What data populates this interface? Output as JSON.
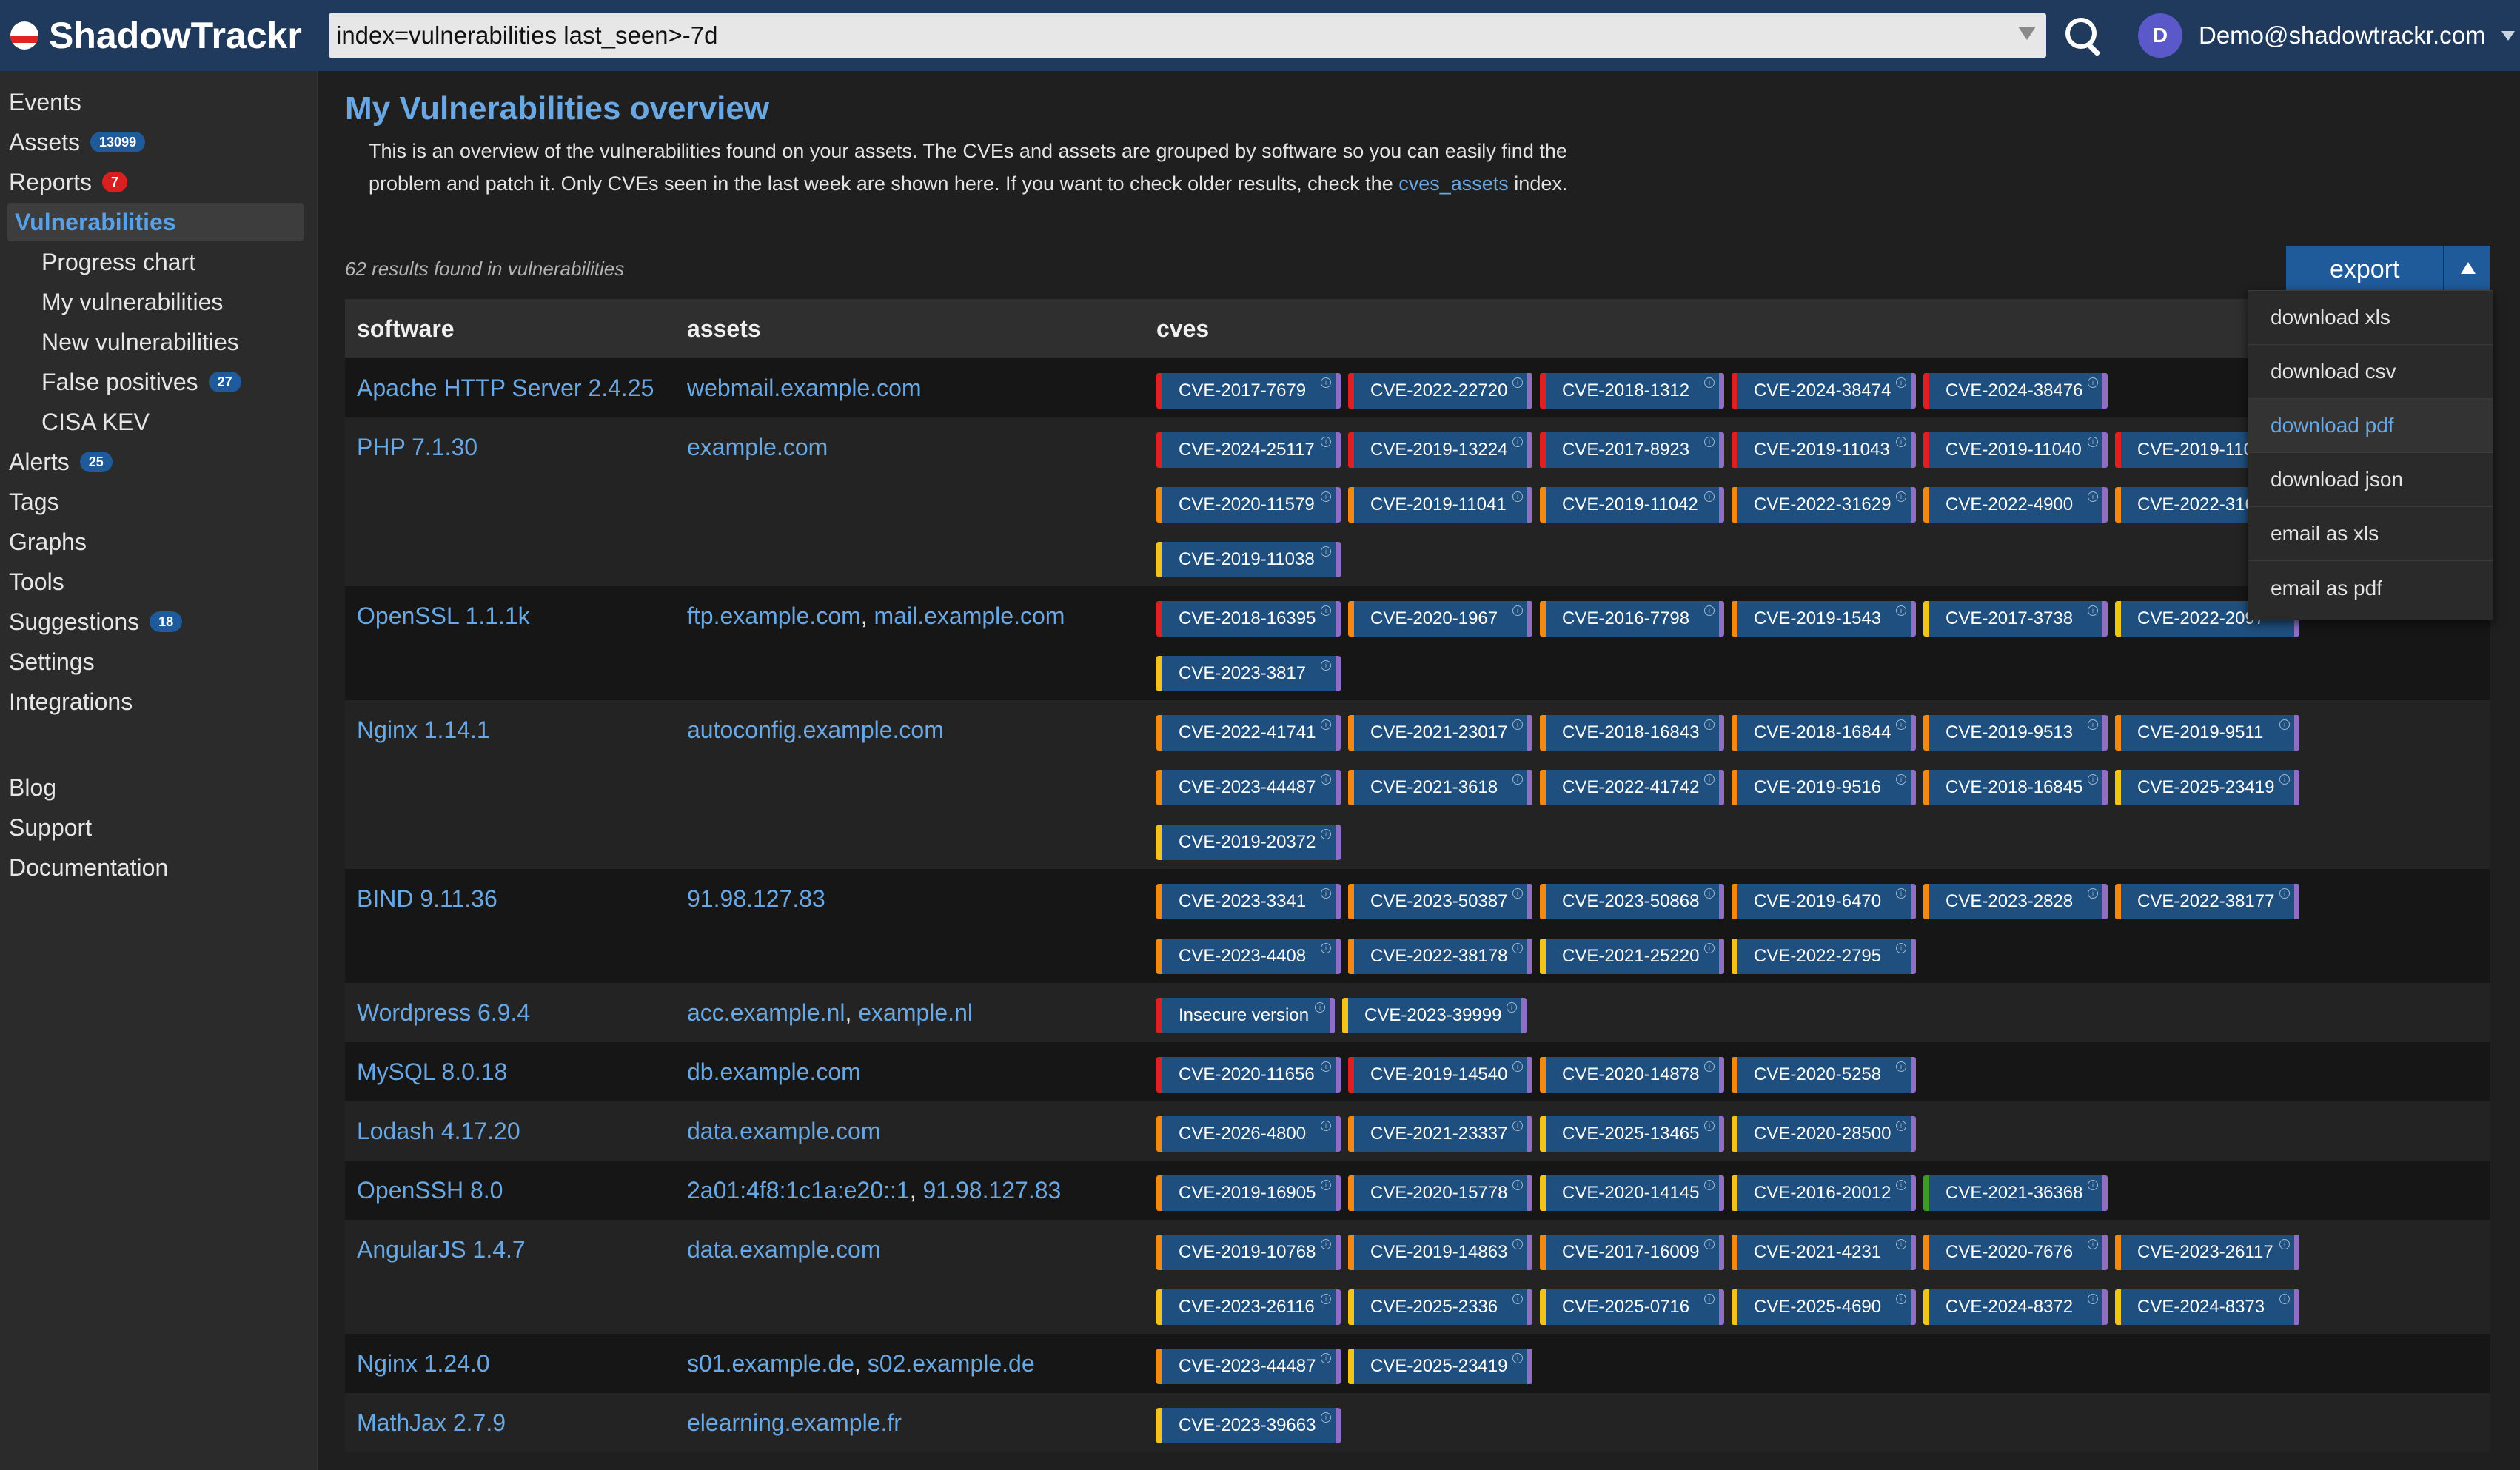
{
  "app": {
    "name": "ShadowTrackr"
  },
  "search": {
    "query": "index=vulnerabilities last_seen>-7d"
  },
  "user": {
    "initial": "D",
    "email": "Demo@shadowtrackr.com"
  },
  "colors": {
    "topbar": "#1f3a5c",
    "link": "#6aa8e4",
    "badge_blue": "#1f5a9a",
    "badge_red": "#d91f1f",
    "critical": "#e02020",
    "high": "#f28a12",
    "medium": "#f2c41a",
    "low": "#3a9b27",
    "cve_bg": "#1f4f7e"
  },
  "sidebar": {
    "items": [
      {
        "label": "Events"
      },
      {
        "label": "Assets",
        "badge": "13099"
      },
      {
        "label": "Reports",
        "badge": "7"
      },
      {
        "label": "Vulnerabilities"
      },
      {
        "label": "Progress chart"
      },
      {
        "label": "My vulnerabilities"
      },
      {
        "label": "New vulnerabilities"
      },
      {
        "label": "False positives",
        "badge": "27"
      },
      {
        "label": "CISA KEV"
      },
      {
        "label": "Alerts",
        "badge": "25"
      },
      {
        "label": "Tags"
      },
      {
        "label": "Graphs"
      },
      {
        "label": "Tools"
      },
      {
        "label": "Suggestions",
        "badge": "18"
      },
      {
        "label": "Settings"
      },
      {
        "label": "Integrations"
      },
      {
        "label": "Blog"
      },
      {
        "label": "Support"
      },
      {
        "label": "Documentation"
      }
    ]
  },
  "main": {
    "title": "My Vulnerabilities overview",
    "description_part1": "This is an overview of the vulnerabilities found on your assets. The CVEs and assets are grouped by software so you can easily find the problem and patch it. Only CVEs seen in the last week are shown here. If you want to check older results, check the ",
    "description_link": "cves_assets",
    "description_part2": " index.",
    "results": "62 results found in vulnerabilities"
  },
  "export": {
    "label": "export",
    "menu": [
      "download xls",
      "download csv",
      "download pdf",
      "download json",
      "email as xls",
      "email as pdf"
    ]
  },
  "table": {
    "headers": [
      "software",
      "assets",
      "cves"
    ],
    "rows": [
      {
        "software": "Apache HTTP Server 2.4.25",
        "assets": [
          "webmail.example.com"
        ],
        "cves": [
          {
            "id": "CVE-2017-7679",
            "sev": "red"
          },
          {
            "id": "CVE-2022-22720",
            "sev": "red"
          },
          {
            "id": "CVE-2018-1312",
            "sev": "red"
          },
          {
            "id": "CVE-2024-38474",
            "sev": "red"
          },
          {
            "id": "CVE-2024-38476",
            "sev": "red"
          }
        ]
      },
      {
        "software": "PHP 7.1.30",
        "assets": [
          "example.com"
        ],
        "cves": [
          {
            "id": "CVE-2024-25117",
            "sev": "red"
          },
          {
            "id": "CVE-2019-13224",
            "sev": "red"
          },
          {
            "id": "CVE-2017-8923",
            "sev": "red"
          },
          {
            "id": "CVE-2019-11043",
            "sev": "red"
          },
          {
            "id": "CVE-2019-11040",
            "sev": "red"
          },
          {
            "id": "CVE-2019-11039",
            "sev": "red"
          },
          {
            "id": "CVE-2020-11579",
            "sev": "orange"
          },
          {
            "id": "CVE-2019-11041",
            "sev": "orange"
          },
          {
            "id": "CVE-2019-11042",
            "sev": "orange"
          },
          {
            "id": "CVE-2022-31629",
            "sev": "orange"
          },
          {
            "id": "CVE-2022-4900",
            "sev": "orange"
          },
          {
            "id": "CVE-2022-31628",
            "sev": "orange"
          },
          {
            "id": "CVE-2019-11038",
            "sev": "yellow"
          }
        ]
      },
      {
        "software": "OpenSSL 1.1.1k",
        "assets": [
          "ftp.example.com",
          "mail.example.com"
        ],
        "cves": [
          {
            "id": "CVE-2018-16395",
            "sev": "red"
          },
          {
            "id": "CVE-2020-1967",
            "sev": "orange"
          },
          {
            "id": "CVE-2016-7798",
            "sev": "orange"
          },
          {
            "id": "CVE-2019-1543",
            "sev": "orange"
          },
          {
            "id": "CVE-2017-3738",
            "sev": "yellow"
          },
          {
            "id": "CVE-2022-2097",
            "sev": "yellow"
          },
          {
            "id": "CVE-2023-3817",
            "sev": "yellow"
          }
        ]
      },
      {
        "software": "Nginx 1.14.1",
        "assets": [
          "autoconfig.example.com"
        ],
        "cves": [
          {
            "id": "CVE-2022-41741",
            "sev": "orange"
          },
          {
            "id": "CVE-2021-23017",
            "sev": "orange"
          },
          {
            "id": "CVE-2018-16843",
            "sev": "orange"
          },
          {
            "id": "CVE-2018-16844",
            "sev": "orange"
          },
          {
            "id": "CVE-2019-9513",
            "sev": "orange"
          },
          {
            "id": "CVE-2019-9511",
            "sev": "orange"
          },
          {
            "id": "CVE-2023-44487",
            "sev": "orange"
          },
          {
            "id": "CVE-2021-3618",
            "sev": "orange"
          },
          {
            "id": "CVE-2022-41742",
            "sev": "orange"
          },
          {
            "id": "CVE-2019-9516",
            "sev": "orange"
          },
          {
            "id": "CVE-2018-16845",
            "sev": "orange"
          },
          {
            "id": "CVE-2025-23419",
            "sev": "yellow"
          },
          {
            "id": "CVE-2019-20372",
            "sev": "yellow"
          }
        ]
      },
      {
        "software": "BIND 9.11.36",
        "assets": [
          "91.98.127.83"
        ],
        "cves": [
          {
            "id": "CVE-2023-3341",
            "sev": "orange"
          },
          {
            "id": "CVE-2023-50387",
            "sev": "orange"
          },
          {
            "id": "CVE-2023-50868",
            "sev": "orange"
          },
          {
            "id": "CVE-2019-6470",
            "sev": "orange"
          },
          {
            "id": "CVE-2023-2828",
            "sev": "orange"
          },
          {
            "id": "CVE-2022-38177",
            "sev": "orange"
          },
          {
            "id": "CVE-2023-4408",
            "sev": "orange"
          },
          {
            "id": "CVE-2022-38178",
            "sev": "orange"
          },
          {
            "id": "CVE-2021-25220",
            "sev": "yellow"
          },
          {
            "id": "CVE-2022-2795",
            "sev": "yellow"
          }
        ]
      },
      {
        "software": "Wordpress 6.9.4",
        "assets": [
          "acc.example.nl",
          "example.nl"
        ],
        "cves": [
          {
            "id": "Insecure version",
            "sev": "red",
            "label": true
          },
          {
            "id": "CVE-2023-39999",
            "sev": "yellow"
          }
        ]
      },
      {
        "software": "MySQL 8.0.18",
        "assets": [
          "db.example.com"
        ],
        "cves": [
          {
            "id": "CVE-2020-11656",
            "sev": "red"
          },
          {
            "id": "CVE-2019-14540",
            "sev": "red"
          },
          {
            "id": "CVE-2020-14878",
            "sev": "orange"
          },
          {
            "id": "CVE-2020-5258",
            "sev": "orange"
          }
        ]
      },
      {
        "software": "Lodash 4.17.20",
        "assets": [
          "data.example.com"
        ],
        "cves": [
          {
            "id": "CVE-2026-4800",
            "sev": "orange"
          },
          {
            "id": "CVE-2021-23337",
            "sev": "orange"
          },
          {
            "id": "CVE-2025-13465",
            "sev": "yellow"
          },
          {
            "id": "CVE-2020-28500",
            "sev": "yellow"
          }
        ]
      },
      {
        "software": "OpenSSH 8.0",
        "assets": [
          "2a01:4f8:1c1a:e20::1",
          "91.98.127.83"
        ],
        "cves": [
          {
            "id": "CVE-2019-16905",
            "sev": "orange"
          },
          {
            "id": "CVE-2020-15778",
            "sev": "orange"
          },
          {
            "id": "CVE-2020-14145",
            "sev": "yellow"
          },
          {
            "id": "CVE-2016-20012",
            "sev": "yellow"
          },
          {
            "id": "CVE-2021-36368",
            "sev": "green"
          }
        ]
      },
      {
        "software": "AngularJS 1.4.7",
        "assets": [
          "data.example.com"
        ],
        "cves": [
          {
            "id": "CVE-2019-10768",
            "sev": "orange"
          },
          {
            "id": "CVE-2019-14863",
            "sev": "orange"
          },
          {
            "id": "CVE-2017-16009",
            "sev": "orange"
          },
          {
            "id": "CVE-2021-4231",
            "sev": "orange"
          },
          {
            "id": "CVE-2020-7676",
            "sev": "orange"
          },
          {
            "id": "CVE-2023-26117",
            "sev": "orange"
          },
          {
            "id": "CVE-2023-26116",
            "sev": "yellow"
          },
          {
            "id": "CVE-2025-2336",
            "sev": "yellow"
          },
          {
            "id": "CVE-2025-0716",
            "sev": "yellow"
          },
          {
            "id": "CVE-2025-4690",
            "sev": "yellow"
          },
          {
            "id": "CVE-2024-8372",
            "sev": "yellow"
          },
          {
            "id": "CVE-2024-8373",
            "sev": "yellow"
          }
        ]
      },
      {
        "software": "Nginx 1.24.0",
        "assets": [
          "s01.example.de",
          "s02.example.de"
        ],
        "cves": [
          {
            "id": "CVE-2023-44487",
            "sev": "orange"
          },
          {
            "id": "CVE-2025-23419",
            "sev": "yellow"
          }
        ]
      },
      {
        "software": "MathJax 2.7.9",
        "assets": [
          "elearning.example.fr"
        ],
        "cves": [
          {
            "id": "CVE-2023-39663",
            "sev": "yellow"
          }
        ]
      }
    ]
  }
}
